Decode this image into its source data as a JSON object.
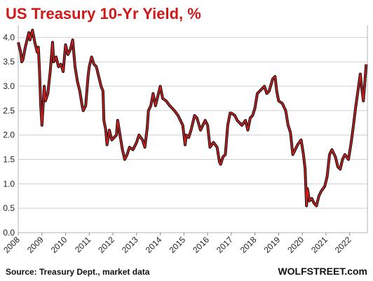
{
  "chart_data": {
    "type": "line",
    "title": "US Treasury  10-Yr Yield, %",
    "xlabel": "",
    "ylabel": "",
    "xlim": [
      2008.0,
      2022.75
    ],
    "ylim": [
      0,
      4.25
    ],
    "grid": "horizontal",
    "y_ticks": [
      "0.0",
      "0.5",
      "1.0",
      "1.5",
      "2.0",
      "2.5",
      "3.0",
      "3.5",
      "4.0"
    ],
    "x_ticks": [
      "2008",
      "2009",
      "2010",
      "2011",
      "2012",
      "2013",
      "2014",
      "2015",
      "2016",
      "2017",
      "2018",
      "2019",
      "2020",
      "2021",
      "2022"
    ],
    "series": [
      {
        "color": "#e01b1b",
        "data": [
          [
            2008.0,
            3.9
          ],
          [
            2008.1,
            3.7
          ],
          [
            2008.15,
            3.5
          ],
          [
            2008.2,
            3.55
          ],
          [
            2008.3,
            3.8
          ],
          [
            2008.35,
            3.9
          ],
          [
            2008.45,
            4.1
          ],
          [
            2008.5,
            3.95
          ],
          [
            2008.6,
            4.15
          ],
          [
            2008.7,
            3.9
          ],
          [
            2008.8,
            3.7
          ],
          [
            2008.85,
            3.8
          ],
          [
            2008.9,
            3.3
          ],
          [
            2008.95,
            2.6
          ],
          [
            2009.0,
            2.2
          ],
          [
            2009.05,
            2.6
          ],
          [
            2009.1,
            3.0
          ],
          [
            2009.15,
            2.7
          ],
          [
            2009.25,
            2.85
          ],
          [
            2009.35,
            3.3
          ],
          [
            2009.45,
            3.9
          ],
          [
            2009.5,
            3.5
          ],
          [
            2009.6,
            3.6
          ],
          [
            2009.7,
            3.4
          ],
          [
            2009.8,
            3.45
          ],
          [
            2009.9,
            3.3
          ],
          [
            2010.0,
            3.85
          ],
          [
            2010.1,
            3.65
          ],
          [
            2010.2,
            3.75
          ],
          [
            2010.3,
            3.95
          ],
          [
            2010.4,
            3.4
          ],
          [
            2010.5,
            3.1
          ],
          [
            2010.6,
            2.9
          ],
          [
            2010.7,
            2.6
          ],
          [
            2010.75,
            2.5
          ],
          [
            2010.85,
            2.6
          ],
          [
            2010.95,
            3.2
          ],
          [
            2011.0,
            3.4
          ],
          [
            2011.1,
            3.6
          ],
          [
            2011.2,
            3.45
          ],
          [
            2011.3,
            3.4
          ],
          [
            2011.4,
            3.2
          ],
          [
            2011.5,
            3.0
          ],
          [
            2011.58,
            2.9
          ],
          [
            2011.62,
            2.3
          ],
          [
            2011.7,
            2.1
          ],
          [
            2011.75,
            1.8
          ],
          [
            2011.85,
            2.1
          ],
          [
            2011.95,
            1.9
          ],
          [
            2012.05,
            1.95
          ],
          [
            2012.15,
            2.0
          ],
          [
            2012.2,
            2.3
          ],
          [
            2012.3,
            2.0
          ],
          [
            2012.4,
            1.7
          ],
          [
            2012.5,
            1.5
          ],
          [
            2012.6,
            1.6
          ],
          [
            2012.7,
            1.75
          ],
          [
            2012.85,
            1.7
          ],
          [
            2013.0,
            1.85
          ],
          [
            2013.1,
            2.0
          ],
          [
            2013.25,
            1.9
          ],
          [
            2013.35,
            1.75
          ],
          [
            2013.45,
            2.15
          ],
          [
            2013.5,
            2.5
          ],
          [
            2013.6,
            2.6
          ],
          [
            2013.7,
            2.85
          ],
          [
            2013.8,
            2.6
          ],
          [
            2013.9,
            2.8
          ],
          [
            2014.0,
            3.0
          ],
          [
            2014.1,
            2.75
          ],
          [
            2014.25,
            2.7
          ],
          [
            2014.4,
            2.6
          ],
          [
            2014.5,
            2.55
          ],
          [
            2014.6,
            2.5
          ],
          [
            2014.75,
            2.4
          ],
          [
            2014.85,
            2.3
          ],
          [
            2014.95,
            2.2
          ],
          [
            2015.05,
            1.8
          ],
          [
            2015.1,
            2.0
          ],
          [
            2015.2,
            1.95
          ],
          [
            2015.3,
            2.1
          ],
          [
            2015.45,
            2.4
          ],
          [
            2015.55,
            2.35
          ],
          [
            2015.7,
            2.1
          ],
          [
            2015.8,
            2.2
          ],
          [
            2015.9,
            2.3
          ],
          [
            2016.0,
            2.2
          ],
          [
            2016.1,
            1.75
          ],
          [
            2016.25,
            1.85
          ],
          [
            2016.4,
            1.75
          ],
          [
            2016.5,
            1.45
          ],
          [
            2016.55,
            1.4
          ],
          [
            2016.65,
            1.55
          ],
          [
            2016.75,
            1.6
          ],
          [
            2016.85,
            2.2
          ],
          [
            2016.95,
            2.45
          ],
          [
            2017.0,
            2.45
          ],
          [
            2017.15,
            2.4
          ],
          [
            2017.25,
            2.3
          ],
          [
            2017.45,
            2.2
          ],
          [
            2017.6,
            2.3
          ],
          [
            2017.7,
            2.1
          ],
          [
            2017.8,
            2.35
          ],
          [
            2017.9,
            2.4
          ],
          [
            2018.0,
            2.55
          ],
          [
            2018.1,
            2.85
          ],
          [
            2018.2,
            2.9
          ],
          [
            2018.3,
            2.95
          ],
          [
            2018.4,
            3.0
          ],
          [
            2018.5,
            2.85
          ],
          [
            2018.6,
            2.9
          ],
          [
            2018.75,
            3.15
          ],
          [
            2018.85,
            3.2
          ],
          [
            2018.92,
            2.9
          ],
          [
            2019.0,
            2.7
          ],
          [
            2019.15,
            2.65
          ],
          [
            2019.3,
            2.5
          ],
          [
            2019.4,
            2.2
          ],
          [
            2019.5,
            2.05
          ],
          [
            2019.6,
            1.6
          ],
          [
            2019.7,
            1.7
          ],
          [
            2019.8,
            1.8
          ],
          [
            2019.95,
            1.9
          ],
          [
            2020.05,
            1.6
          ],
          [
            2020.12,
            1.3
          ],
          [
            2020.18,
            0.55
          ],
          [
            2020.22,
            0.9
          ],
          [
            2020.3,
            0.65
          ],
          [
            2020.4,
            0.7
          ],
          [
            2020.5,
            0.6
          ],
          [
            2020.6,
            0.55
          ],
          [
            2020.7,
            0.75
          ],
          [
            2020.8,
            0.85
          ],
          [
            2020.95,
            0.95
          ],
          [
            2021.05,
            1.15
          ],
          [
            2021.15,
            1.6
          ],
          [
            2021.25,
            1.7
          ],
          [
            2021.4,
            1.55
          ],
          [
            2021.5,
            1.35
          ],
          [
            2021.6,
            1.3
          ],
          [
            2021.7,
            1.5
          ],
          [
            2021.8,
            1.6
          ],
          [
            2021.95,
            1.5
          ],
          [
            2022.05,
            1.8
          ],
          [
            2022.15,
            2.15
          ],
          [
            2022.25,
            2.55
          ],
          [
            2022.35,
            2.9
          ],
          [
            2022.45,
            3.25
          ],
          [
            2022.5,
            3.0
          ],
          [
            2022.58,
            2.7
          ],
          [
            2022.63,
            3.0
          ],
          [
            2022.7,
            3.45
          ]
        ]
      }
    ]
  },
  "footer": {
    "source": "Source: Treasury Dept., market data",
    "brand": "WOLFSTREET.com"
  }
}
